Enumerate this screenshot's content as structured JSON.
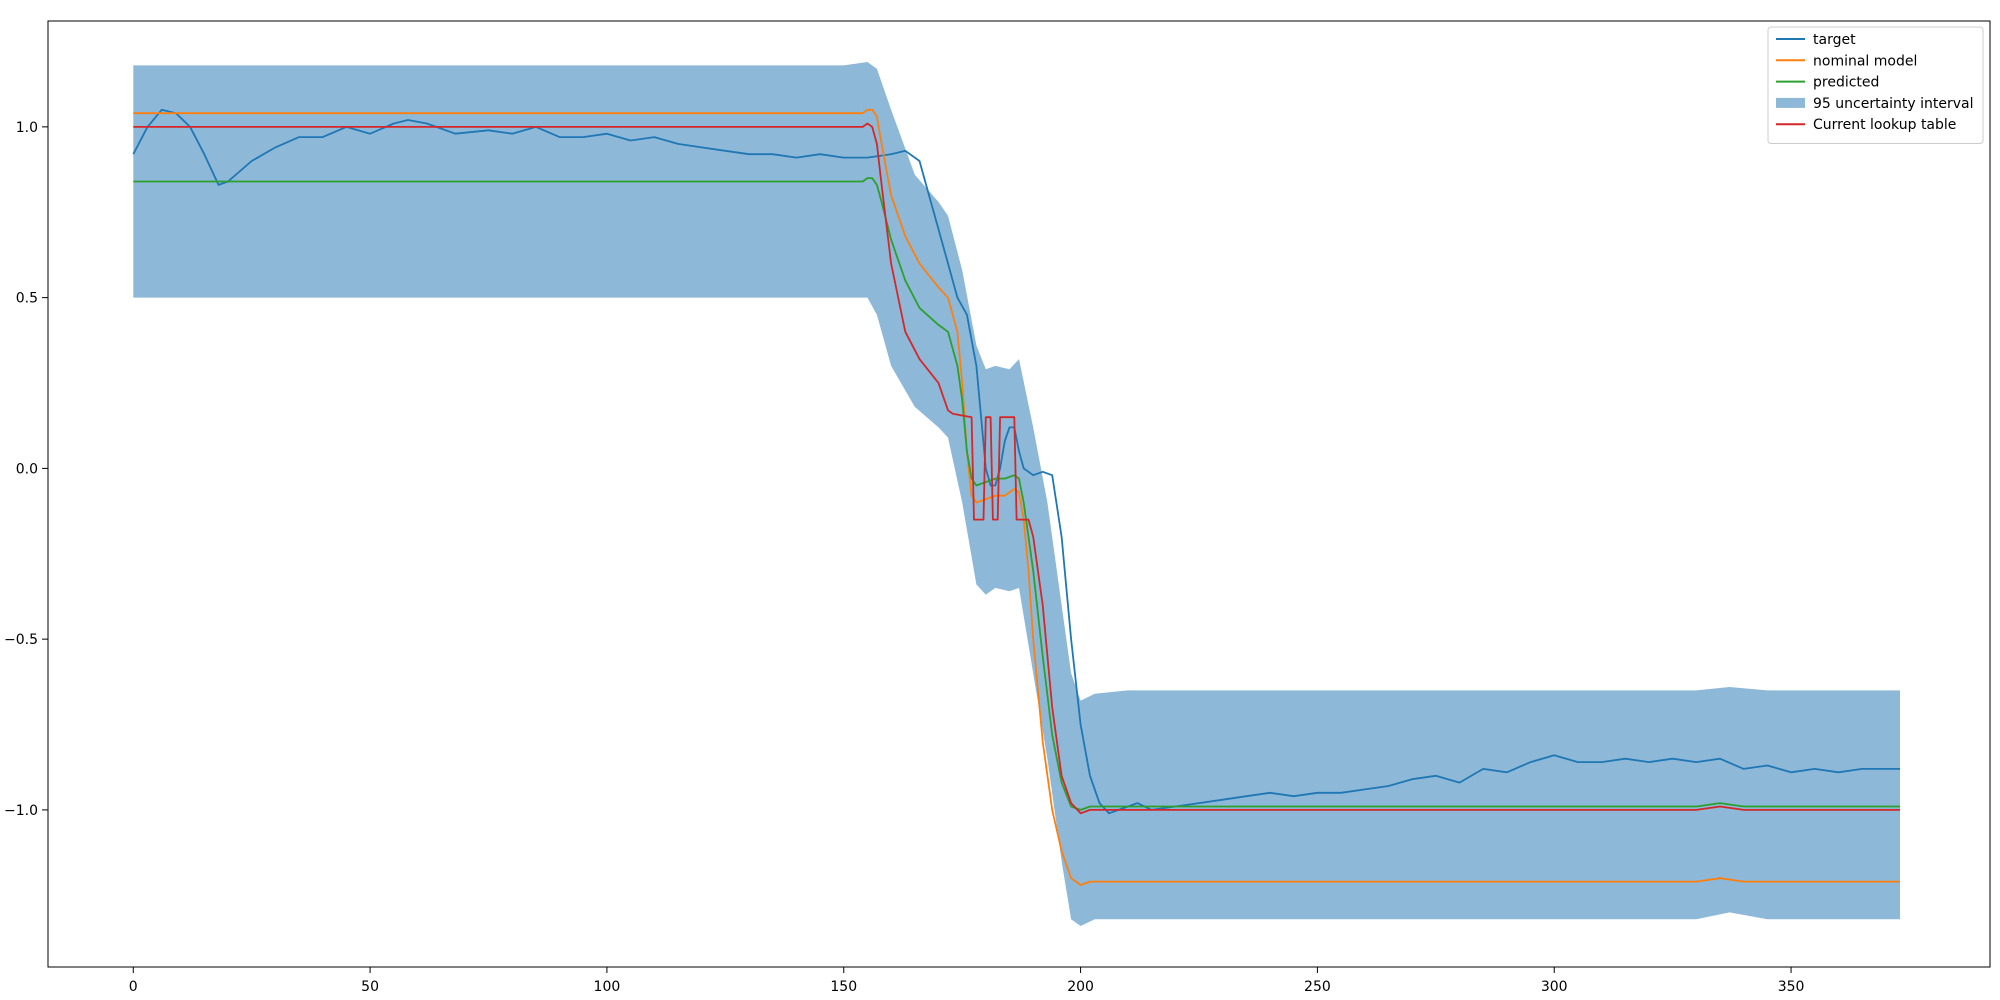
{
  "chart_data": {
    "type": "line",
    "title": "",
    "xlabel": "",
    "ylabel": "",
    "xlim": [
      -18,
      392
    ],
    "ylim": [
      -1.46,
      1.31
    ],
    "xticks": [
      {
        "value": 0,
        "label": "0"
      },
      {
        "value": 50,
        "label": "50"
      },
      {
        "value": 100,
        "label": "100"
      },
      {
        "value": 150,
        "label": "150"
      },
      {
        "value": 200,
        "label": "200"
      },
      {
        "value": 250,
        "label": "250"
      },
      {
        "value": 300,
        "label": "300"
      },
      {
        "value": 350,
        "label": "350"
      }
    ],
    "yticks": [
      {
        "value": 1.0,
        "label": "1.0"
      },
      {
        "value": 0.5,
        "label": "0.5"
      },
      {
        "value": 0.0,
        "label": "0.0"
      },
      {
        "value": -0.5,
        "label": "−0.5"
      },
      {
        "value": -1.0,
        "label": "−1.0"
      }
    ],
    "legend_position": "top-right",
    "grid": false,
    "interval": {
      "name": "95 uncertainty interval",
      "color": "#8db8d8",
      "upper": [
        [
          0,
          1.18
        ],
        [
          50,
          1.18
        ],
        [
          100,
          1.18
        ],
        [
          150,
          1.18
        ],
        [
          155,
          1.19
        ],
        [
          157,
          1.17
        ],
        [
          160,
          1.05
        ],
        [
          165,
          0.86
        ],
        [
          170,
          0.78
        ],
        [
          172,
          0.74
        ],
        [
          175,
          0.58
        ],
        [
          178,
          0.36
        ],
        [
          180,
          0.29
        ],
        [
          182,
          0.3
        ],
        [
          185,
          0.29
        ],
        [
          187,
          0.32
        ],
        [
          190,
          0.12
        ],
        [
          193,
          -0.1
        ],
        [
          196,
          -0.4
        ],
        [
          198,
          -0.6
        ],
        [
          200,
          -0.68
        ],
        [
          203,
          -0.66
        ],
        [
          210,
          -0.65
        ],
        [
          250,
          -0.65
        ],
        [
          300,
          -0.65
        ],
        [
          330,
          -0.65
        ],
        [
          337,
          -0.64
        ],
        [
          345,
          -0.65
        ],
        [
          373,
          -0.65
        ]
      ],
      "lower": [
        [
          0,
          0.5
        ],
        [
          50,
          0.5
        ],
        [
          100,
          0.5
        ],
        [
          150,
          0.5
        ],
        [
          155,
          0.5
        ],
        [
          157,
          0.45
        ],
        [
          160,
          0.3
        ],
        [
          165,
          0.18
        ],
        [
          170,
          0.12
        ],
        [
          172,
          0.09
        ],
        [
          175,
          -0.1
        ],
        [
          178,
          -0.34
        ],
        [
          180,
          -0.37
        ],
        [
          182,
          -0.35
        ],
        [
          185,
          -0.36
        ],
        [
          187,
          -0.35
        ],
        [
          190,
          -0.6
        ],
        [
          193,
          -0.85
        ],
        [
          196,
          -1.15
        ],
        [
          198,
          -1.32
        ],
        [
          200,
          -1.34
        ],
        [
          203,
          -1.32
        ],
        [
          210,
          -1.32
        ],
        [
          250,
          -1.32
        ],
        [
          300,
          -1.32
        ],
        [
          330,
          -1.32
        ],
        [
          337,
          -1.3
        ],
        [
          345,
          -1.32
        ],
        [
          373,
          -1.32
        ]
      ]
    },
    "series": [
      {
        "name": "target",
        "color": "#1f77b4",
        "points": [
          [
            0,
            0.92
          ],
          [
            3,
            1.0
          ],
          [
            6,
            1.05
          ],
          [
            9,
            1.04
          ],
          [
            12,
            1.0
          ],
          [
            15,
            0.92
          ],
          [
            18,
            0.83
          ],
          [
            20,
            0.84
          ],
          [
            25,
            0.9
          ],
          [
            30,
            0.94
          ],
          [
            35,
            0.97
          ],
          [
            40,
            0.97
          ],
          [
            45,
            1.0
          ],
          [
            50,
            0.98
          ],
          [
            55,
            1.01
          ],
          [
            58,
            1.02
          ],
          [
            62,
            1.01
          ],
          [
            68,
            0.98
          ],
          [
            75,
            0.99
          ],
          [
            80,
            0.98
          ],
          [
            85,
            1.0
          ],
          [
            90,
            0.97
          ],
          [
            95,
            0.97
          ],
          [
            100,
            0.98
          ],
          [
            105,
            0.96
          ],
          [
            110,
            0.97
          ],
          [
            115,
            0.95
          ],
          [
            120,
            0.94
          ],
          [
            125,
            0.93
          ],
          [
            130,
            0.92
          ],
          [
            135,
            0.92
          ],
          [
            140,
            0.91
          ],
          [
            145,
            0.92
          ],
          [
            150,
            0.91
          ],
          [
            155,
            0.91
          ],
          [
            160,
            0.92
          ],
          [
            163,
            0.93
          ],
          [
            166,
            0.9
          ],
          [
            168,
            0.8
          ],
          [
            170,
            0.7
          ],
          [
            172,
            0.6
          ],
          [
            174,
            0.5
          ],
          [
            176,
            0.45
          ],
          [
            178,
            0.3
          ],
          [
            179,
            0.15
          ],
          [
            180,
            0.0
          ],
          [
            181,
            -0.05
          ],
          [
            182,
            -0.05
          ],
          [
            183,
            0.0
          ],
          [
            184,
            0.08
          ],
          [
            185,
            0.12
          ],
          [
            186,
            0.12
          ],
          [
            187,
            0.05
          ],
          [
            188,
            0.0
          ],
          [
            190,
            -0.02
          ],
          [
            192,
            -0.01
          ],
          [
            194,
            -0.02
          ],
          [
            196,
            -0.2
          ],
          [
            198,
            -0.5
          ],
          [
            200,
            -0.75
          ],
          [
            202,
            -0.9
          ],
          [
            204,
            -0.98
          ],
          [
            206,
            -1.01
          ],
          [
            208,
            -1.0
          ],
          [
            212,
            -0.98
          ],
          [
            215,
            -1.0
          ],
          [
            220,
            -0.99
          ],
          [
            225,
            -0.98
          ],
          [
            230,
            -0.97
          ],
          [
            235,
            -0.96
          ],
          [
            240,
            -0.95
          ],
          [
            245,
            -0.96
          ],
          [
            250,
            -0.95
          ],
          [
            255,
            -0.95
          ],
          [
            260,
            -0.94
          ],
          [
            265,
            -0.93
          ],
          [
            270,
            -0.91
          ],
          [
            275,
            -0.9
          ],
          [
            280,
            -0.92
          ],
          [
            285,
            -0.88
          ],
          [
            290,
            -0.89
          ],
          [
            295,
            -0.86
          ],
          [
            300,
            -0.84
          ],
          [
            305,
            -0.86
          ],
          [
            310,
            -0.86
          ],
          [
            315,
            -0.85
          ],
          [
            320,
            -0.86
          ],
          [
            325,
            -0.85
          ],
          [
            330,
            -0.86
          ],
          [
            335,
            -0.85
          ],
          [
            340,
            -0.88
          ],
          [
            345,
            -0.87
          ],
          [
            350,
            -0.89
          ],
          [
            355,
            -0.88
          ],
          [
            360,
            -0.89
          ],
          [
            365,
            -0.88
          ],
          [
            370,
            -0.88
          ],
          [
            373,
            -0.88
          ]
        ]
      },
      {
        "name": "nominal model",
        "color": "#ff7f0e",
        "points": [
          [
            0,
            1.04
          ],
          [
            50,
            1.04
          ],
          [
            100,
            1.04
          ],
          [
            150,
            1.04
          ],
          [
            154,
            1.04
          ],
          [
            155,
            1.05
          ],
          [
            156,
            1.05
          ],
          [
            157,
            1.03
          ],
          [
            158,
            0.95
          ],
          [
            160,
            0.8
          ],
          [
            163,
            0.68
          ],
          [
            166,
            0.6
          ],
          [
            170,
            0.53
          ],
          [
            172,
            0.5
          ],
          [
            174,
            0.4
          ],
          [
            175,
            0.25
          ],
          [
            176,
            0.05
          ],
          [
            177,
            -0.08
          ],
          [
            178,
            -0.1
          ],
          [
            180,
            -0.09
          ],
          [
            182,
            -0.08
          ],
          [
            184,
            -0.08
          ],
          [
            186,
            -0.06
          ],
          [
            187,
            -0.07
          ],
          [
            188,
            -0.15
          ],
          [
            189,
            -0.3
          ],
          [
            190,
            -0.5
          ],
          [
            192,
            -0.8
          ],
          [
            194,
            -1.0
          ],
          [
            196,
            -1.12
          ],
          [
            198,
            -1.2
          ],
          [
            200,
            -1.22
          ],
          [
            202,
            -1.21
          ],
          [
            210,
            -1.21
          ],
          [
            250,
            -1.21
          ],
          [
            300,
            -1.21
          ],
          [
            330,
            -1.21
          ],
          [
            335,
            -1.2
          ],
          [
            340,
            -1.21
          ],
          [
            373,
            -1.21
          ]
        ]
      },
      {
        "name": "predicted",
        "color": "#2ca02c",
        "points": [
          [
            0,
            0.84
          ],
          [
            50,
            0.84
          ],
          [
            100,
            0.84
          ],
          [
            150,
            0.84
          ],
          [
            154,
            0.84
          ],
          [
            155,
            0.85
          ],
          [
            156,
            0.85
          ],
          [
            157,
            0.83
          ],
          [
            158,
            0.78
          ],
          [
            160,
            0.67
          ],
          [
            163,
            0.55
          ],
          [
            166,
            0.47
          ],
          [
            170,
            0.42
          ],
          [
            172,
            0.4
          ],
          [
            174,
            0.3
          ],
          [
            175,
            0.2
          ],
          [
            176,
            0.05
          ],
          [
            177,
            -0.03
          ],
          [
            178,
            -0.05
          ],
          [
            180,
            -0.04
          ],
          [
            182,
            -0.03
          ],
          [
            184,
            -0.03
          ],
          [
            186,
            -0.02
          ],
          [
            187,
            -0.03
          ],
          [
            188,
            -0.1
          ],
          [
            190,
            -0.3
          ],
          [
            192,
            -0.55
          ],
          [
            194,
            -0.78
          ],
          [
            196,
            -0.92
          ],
          [
            198,
            -0.99
          ],
          [
            200,
            -1.0
          ],
          [
            202,
            -0.99
          ],
          [
            210,
            -0.99
          ],
          [
            250,
            -0.99
          ],
          [
            300,
            -0.99
          ],
          [
            330,
            -0.99
          ],
          [
            335,
            -0.98
          ],
          [
            340,
            -0.99
          ],
          [
            373,
            -0.99
          ]
        ]
      },
      {
        "name": "Current lookup table",
        "color": "#d62728",
        "points": [
          [
            0,
            1.0
          ],
          [
            50,
            1.0
          ],
          [
            100,
            1.0
          ],
          [
            150,
            1.0
          ],
          [
            154,
            1.0
          ],
          [
            155,
            1.01
          ],
          [
            156,
            1.0
          ],
          [
            157,
            0.95
          ],
          [
            158,
            0.83
          ],
          [
            160,
            0.6
          ],
          [
            163,
            0.4
          ],
          [
            166,
            0.32
          ],
          [
            170,
            0.25
          ],
          [
            172,
            0.17
          ],
          [
            173,
            0.16
          ],
          [
            177,
            0.15
          ],
          [
            177.5,
            -0.15
          ],
          [
            179.5,
            -0.15
          ],
          [
            180,
            0.15
          ],
          [
            181,
            0.15
          ],
          [
            181.5,
            -0.15
          ],
          [
            182.5,
            -0.15
          ],
          [
            183,
            0.15
          ],
          [
            186,
            0.15
          ],
          [
            186.5,
            -0.15
          ],
          [
            189,
            -0.15
          ],
          [
            190,
            -0.2
          ],
          [
            192,
            -0.4
          ],
          [
            194,
            -0.7
          ],
          [
            196,
            -0.9
          ],
          [
            198,
            -0.98
          ],
          [
            200,
            -1.01
          ],
          [
            202,
            -1.0
          ],
          [
            210,
            -1.0
          ],
          [
            250,
            -1.0
          ],
          [
            300,
            -1.0
          ],
          [
            330,
            -1.0
          ],
          [
            335,
            -0.99
          ],
          [
            340,
            -1.0
          ],
          [
            373,
            -1.0
          ]
        ]
      }
    ],
    "legend": {
      "entries": [
        {
          "label": "target",
          "color": "#1f77b4",
          "kind": "line"
        },
        {
          "label": "nominal model",
          "color": "#ff7f0e",
          "kind": "line"
        },
        {
          "label": "predicted",
          "color": "#2ca02c",
          "kind": "line"
        },
        {
          "label": "95 uncertainty interval",
          "color": "#8db8d8",
          "kind": "patch"
        },
        {
          "label": "Current lookup table",
          "color": "#d62728",
          "kind": "line"
        }
      ]
    }
  }
}
